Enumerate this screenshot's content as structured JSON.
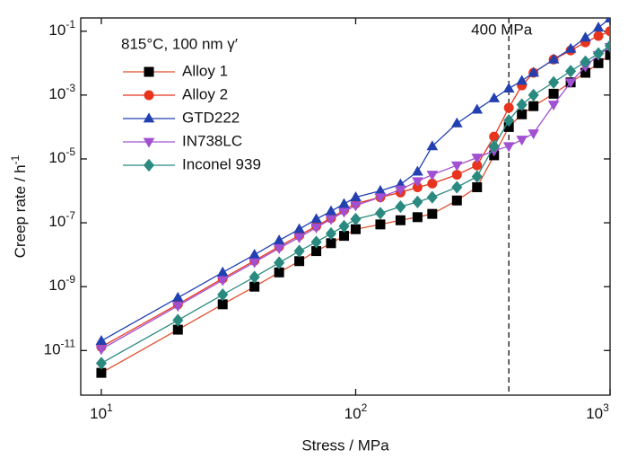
{
  "chart_data": {
    "type": "line",
    "xlabel": "Stress / MPa",
    "ylabel": "Creep rate / h",
    "ylabel_exponent": "-1",
    "legend_title": "815°C, 100 nm γ′",
    "legend": "upper left",
    "xscale": "log",
    "yscale": "log",
    "xlim": [
      8.3,
      1000
    ],
    "ylim": [
      4e-13,
      0.26
    ],
    "xticks": [
      {
        "value": 10,
        "label": "101"
      },
      {
        "value": 100,
        "label": "102"
      },
      {
        "value": 1000,
        "label": "103"
      }
    ],
    "yticks": [
      {
        "value": 1e-11,
        "label": "10-11"
      },
      {
        "value": 1e-09,
        "label": "10-9"
      },
      {
        "value": 1e-07,
        "label": "10-7"
      },
      {
        "value": 1e-05,
        "label": "10-5"
      },
      {
        "value": 0.001,
        "label": "10-3"
      },
      {
        "value": 0.1,
        "label": "10-1"
      }
    ],
    "annotations": [
      {
        "text": "400 MPa",
        "x": 400
      }
    ],
    "x": [
      10,
      20,
      30,
      40,
      50,
      60,
      70,
      80,
      90,
      100,
      125,
      150,
      175,
      200,
      250,
      300,
      350,
      400,
      450,
      500,
      600,
      700,
      800,
      900,
      1000
    ],
    "series": [
      {
        "name": "Alloy 1",
        "color": "#e0502e",
        "marker_color": "#000000",
        "marker": "square",
        "values": [
          2e-12,
          4.5e-11,
          2.8e-10,
          1e-09,
          2.8e-09,
          6.3e-09,
          1.3e-08,
          2.3e-08,
          3.9e-08,
          6.3e-08,
          8.9e-08,
          1.2e-07,
          1.5e-07,
          1.9e-07,
          5e-07,
          1.3e-06,
          1.3e-05,
          0.0001,
          0.00025,
          0.00045,
          0.0011,
          0.0025,
          0.005,
          0.01,
          0.018
        ]
      },
      {
        "name": "Alloy 2",
        "color": "#e8341c",
        "marker_color": "#e8341c",
        "marker": "circle",
        "values": [
          1.3e-11,
          2.8e-10,
          1.8e-09,
          6.5e-09,
          1.8e-08,
          4e-08,
          7.9e-08,
          1.4e-07,
          2.5e-07,
          4e-07,
          6.3e-07,
          8.9e-07,
          1.3e-06,
          1.7e-06,
          3.2e-06,
          6.3e-06,
          5e-05,
          0.0004,
          0.002,
          0.005,
          0.013,
          0.025,
          0.045,
          0.071,
          0.1
        ]
      },
      {
        "name": "GTD222",
        "color": "#2340b0",
        "marker_color": "#2340b0",
        "marker": "triangle",
        "values": [
          2e-11,
          4.5e-10,
          2.8e-09,
          1e-08,
          2.8e-08,
          6.3e-08,
          1.3e-07,
          2.3e-07,
          3.9e-07,
          6.3e-07,
          1e-06,
          1.6e-06,
          4e-06,
          2.5e-05,
          0.00013,
          0.00035,
          0.00079,
          0.0016,
          0.0028,
          0.005,
          0.013,
          0.028,
          0.063,
          0.13,
          0.25
        ]
      },
      {
        "name": "IN738LC",
        "color": "#a050d0",
        "marker_color": "#a050d0",
        "marker": "triangle-down",
        "values": [
          1.1e-11,
          2.5e-10,
          1.6e-09,
          5.8e-09,
          1.6e-08,
          3.5e-08,
          7.1e-08,
          1.3e-07,
          2.2e-07,
          3.5e-07,
          6.3e-07,
          1.1e-06,
          2e-06,
          3.2e-06,
          6.3e-06,
          1.1e-05,
          1.8e-05,
          2.5e-05,
          4e-05,
          6.3e-05,
          0.0005,
          0.0025,
          0.0079,
          0.018,
          0.032
        ]
      },
      {
        "name": "Inconel 939",
        "color": "#2a8a80",
        "marker_color": "#2a8a80",
        "marker": "diamond",
        "values": [
          4e-12,
          8.9e-11,
          5.6e-10,
          2e-09,
          5.6e-09,
          1.3e-08,
          2.5e-08,
          4.6e-08,
          7.8e-08,
          1.3e-07,
          2e-07,
          3.2e-07,
          4.5e-07,
          6.3e-07,
          1.3e-06,
          2.8e-06,
          2.5e-05,
          0.00016,
          0.0005,
          0.001,
          0.0025,
          0.0056,
          0.011,
          0.02,
          0.035
        ]
      }
    ]
  }
}
